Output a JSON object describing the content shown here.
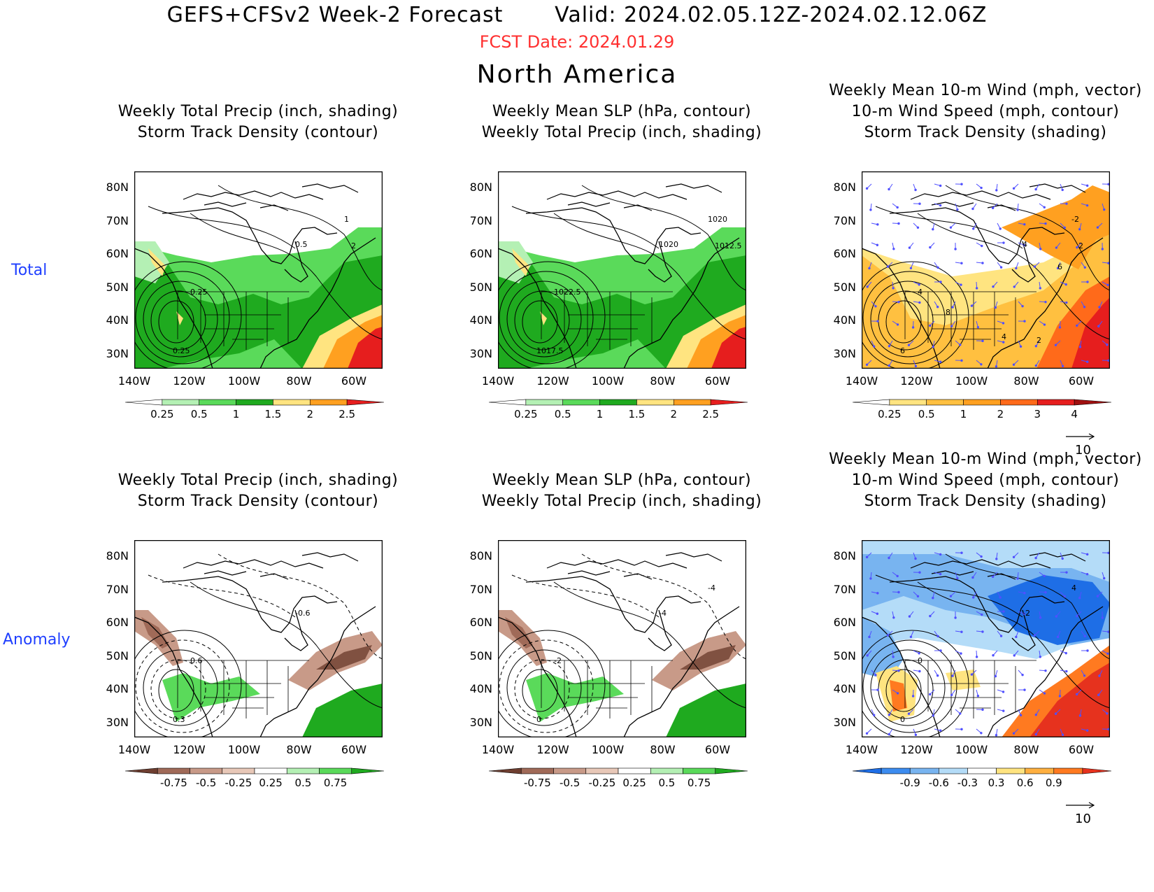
{
  "header": {
    "main_title": "GEFS+CFSv2 Week-2 Forecast       Valid: 2024.02.05.12Z-2024.02.12.06Z",
    "fcst_date": "FCST Date: 2024.01.29",
    "region": "North America"
  },
  "row_labels": [
    "Total",
    "Anomaly"
  ],
  "panels": [
    {
      "id": "p1",
      "title1": "",
      "title2": "Weekly Total Precip (inch, shading)",
      "title3": "Storm Track Density (contour)",
      "scheme": "precip",
      "contour_labels": [
        "0.5",
        "0.25",
        "0.25",
        "1",
        "2"
      ]
    },
    {
      "id": "p2",
      "title1": "",
      "title2": "Weekly Mean SLP (hPa, contour)",
      "title3": "Weekly Total Precip (inch, shading)",
      "scheme": "precip2",
      "contour_labels": [
        "1020",
        "1022.5",
        "1017.5",
        "1020",
        "1012.5"
      ]
    },
    {
      "id": "p3",
      "title1": "Weekly Mean 10-m Wind (mph, vector)",
      "title2": "10-m Wind Speed (mph, contour)",
      "title3": "Storm Track Density (shading)",
      "scheme": "storm",
      "contour_labels": [
        "4",
        "4",
        "6",
        "-2",
        "2",
        "6",
        "8",
        "2",
        "4"
      ]
    },
    {
      "id": "p4",
      "title1": "",
      "title2": "Weekly Total Precip (inch, shading)",
      "title3": "Storm Track Density (contour)",
      "scheme": "precipanom",
      "contour_labels": [
        "-0.6",
        "0.6",
        "0.3"
      ]
    },
    {
      "id": "p5",
      "title1": "",
      "title2": "Weekly Mean SLP (hPa, contour)",
      "title3": "Weekly Total Precip (inch, shading)",
      "scheme": "precipanom2",
      "contour_labels": [
        "-4",
        "-2",
        "0",
        "-4"
      ]
    },
    {
      "id": "p6",
      "title1": "Weekly Mean 10-m Wind (mph, vector)",
      "title2": "10-m Wind Speed (mph, contour)",
      "title3": "Storm Track Density (shading)",
      "scheme": "stormanom",
      "contour_labels": [
        "-2",
        "0",
        "0",
        "4"
      ]
    }
  ],
  "lat_labels": [
    "80N",
    "70N",
    "60N",
    "50N",
    "40N",
    "30N"
  ],
  "lon_labels": [
    "140W",
    "120W",
    "100W",
    "80W",
    "60W"
  ],
  "colorbars": {
    "precip": {
      "ticks": [
        "0.25",
        "0.5",
        "1",
        "1.5",
        "2",
        "2.5"
      ],
      "colors": [
        "#ffffff",
        "#b4f0b4",
        "#5ada5a",
        "#1faa1f",
        "#ffe480",
        "#ffa020",
        "#e61e1e"
      ]
    },
    "storm": {
      "ticks": [
        "0.25",
        "0.5",
        "1",
        "2",
        "3",
        "4"
      ],
      "colors": [
        "#ffffff",
        "#ffe480",
        "#ffc040",
        "#ffa020",
        "#ff6a1a",
        "#e61e1e",
        "#a01010"
      ]
    },
    "precipanom": {
      "ticks": [
        "-0.75",
        "-0.5",
        "-0.25",
        "0.25",
        "0.5",
        "0.75"
      ],
      "colors": [
        "#6e3e30",
        "#a06a58",
        "#c89a88",
        "#e8c8b8",
        "#ffffff",
        "#b4f0b4",
        "#5ada5a",
        "#1faa1f"
      ]
    },
    "stormanom": {
      "ticks": [
        "-0.9",
        "-0.6",
        "-0.3",
        "0.3",
        "0.6",
        "0.9"
      ],
      "colors": [
        "#1e6ee6",
        "#3c8cf0",
        "#78b4f0",
        "#b4dcf8",
        "#ffffff",
        "#ffe480",
        "#ffb040",
        "#ff7a20",
        "#e6321e"
      ]
    }
  },
  "vector_ref": "10"
}
